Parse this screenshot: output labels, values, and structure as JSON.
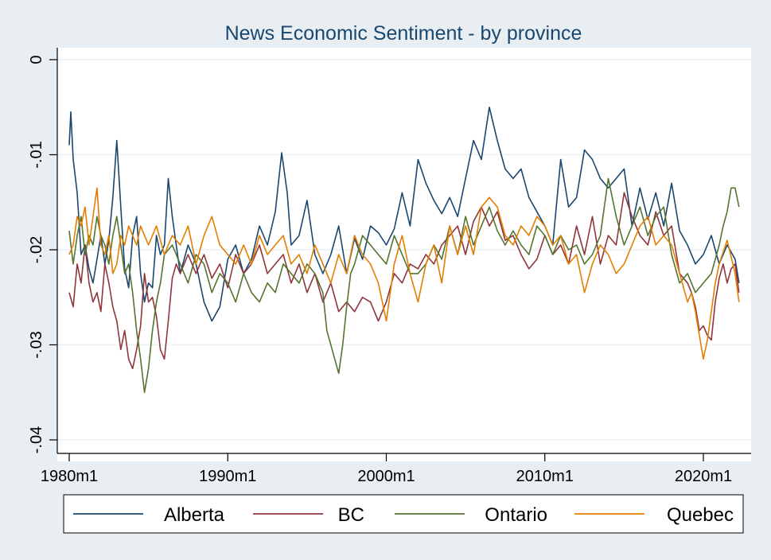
{
  "chart_data": {
    "type": "line",
    "title": "News Economic Sentiment - by province",
    "xlabel": "",
    "ylabel": "",
    "x_ticks": [
      "1980m1",
      "1990m1",
      "2000m1",
      "2010m1",
      "2020m1"
    ],
    "x_tick_years": [
      1980,
      1990,
      2000,
      2010,
      2020
    ],
    "y_ticks": [
      "0",
      "-.01",
      "-.02",
      "-.03",
      "-.04"
    ],
    "y_tick_values": [
      0,
      -0.01,
      -0.02,
      -0.03,
      -0.04
    ],
    "xlim": [
      1980.0,
      2022.25
    ],
    "ylim": [
      -0.041,
      0.0
    ],
    "grid": true,
    "legend_position": "bottom",
    "series": [
      {
        "name": "Alberta",
        "color": "#1a476f",
        "x": [
          1980.0,
          1980.1,
          1980.25,
          1980.5,
          1980.75,
          1981.0,
          1981.25,
          1981.5,
          1981.75,
          1982.0,
          1982.25,
          1982.5,
          1982.75,
          1983.0,
          1983.25,
          1983.5,
          1983.75,
          1984.0,
          1984.25,
          1984.5,
          1984.75,
          1985.0,
          1985.25,
          1985.5,
          1985.75,
          1986.0,
          1986.25,
          1986.5,
          1986.75,
          1987.0,
          1987.5,
          1988.0,
          1988.5,
          1989.0,
          1989.5,
          1990.0,
          1990.5,
          1991.0,
          1991.5,
          1992.0,
          1992.5,
          1993.0,
          1993.4,
          1993.75,
          1994.0,
          1994.5,
          1995.0,
          1995.5,
          1996.0,
          1996.5,
          1997.0,
          1997.5,
          1998.0,
          1998.5,
          1999.0,
          1999.5,
          2000.0,
          2000.5,
          2001.0,
          2001.5,
          2002.0,
          2002.5,
          2003.0,
          2003.5,
          2004.0,
          2004.5,
          2005.0,
          2005.5,
          2006.0,
          2006.5,
          2007.0,
          2007.5,
          2008.0,
          2008.5,
          2009.0,
          2009.5,
          2010.0,
          2010.5,
          2011.0,
          2011.5,
          2012.0,
          2012.5,
          2013.0,
          2013.5,
          2014.0,
          2014.5,
          2015.0,
          2015.5,
          2016.0,
          2016.5,
          2017.0,
          2017.5,
          2018.0,
          2018.5,
          2019.0,
          2019.5,
          2020.0,
          2020.5,
          2021.0,
          2021.5,
          2022.0,
          2022.25
        ],
        "values": [
          -0.009,
          -0.0055,
          -0.0105,
          -0.014,
          -0.0205,
          -0.0195,
          -0.022,
          -0.0235,
          -0.021,
          -0.0185,
          -0.0215,
          -0.019,
          -0.0145,
          -0.0085,
          -0.0155,
          -0.022,
          -0.024,
          -0.0185,
          -0.0165,
          -0.0225,
          -0.0255,
          -0.0235,
          -0.024,
          -0.0185,
          -0.0205,
          -0.0195,
          -0.0125,
          -0.0165,
          -0.0195,
          -0.0225,
          -0.0195,
          -0.0215,
          -0.0255,
          -0.0275,
          -0.026,
          -0.021,
          -0.0195,
          -0.0225,
          -0.021,
          -0.0175,
          -0.0195,
          -0.016,
          -0.0098,
          -0.014,
          -0.0195,
          -0.0185,
          -0.0148,
          -0.0205,
          -0.0225,
          -0.0205,
          -0.0175,
          -0.0225,
          -0.0188,
          -0.021,
          -0.0175,
          -0.0182,
          -0.0195,
          -0.0178,
          -0.014,
          -0.0175,
          -0.0105,
          -0.013,
          -0.0148,
          -0.0162,
          -0.0145,
          -0.0165,
          -0.0125,
          -0.0085,
          -0.0105,
          -0.005,
          -0.0085,
          -0.0115,
          -0.0125,
          -0.0115,
          -0.0145,
          -0.016,
          -0.0175,
          -0.0195,
          -0.0105,
          -0.0155,
          -0.0145,
          -0.0095,
          -0.0105,
          -0.0125,
          -0.0135,
          -0.0125,
          -0.0115,
          -0.0175,
          -0.0135,
          -0.0168,
          -0.014,
          -0.0175,
          -0.013,
          -0.018,
          -0.0195,
          -0.0215,
          -0.0205,
          -0.0185,
          -0.0215,
          -0.0195,
          -0.021,
          -0.0235
        ]
      },
      {
        "name": "BC",
        "color": "#90353b",
        "x": [
          1980.0,
          1980.25,
          1980.5,
          1980.75,
          1981.0,
          1981.25,
          1981.5,
          1981.75,
          1982.0,
          1982.25,
          1982.5,
          1982.75,
          1983.0,
          1983.25,
          1983.5,
          1983.75,
          1984.0,
          1984.25,
          1984.5,
          1984.75,
          1985.0,
          1985.25,
          1985.5,
          1985.75,
          1986.0,
          1986.25,
          1986.5,
          1986.75,
          1987.0,
          1987.5,
          1988.0,
          1988.5,
          1989.0,
          1989.5,
          1990.0,
          1990.5,
          1991.0,
          1991.5,
          1992.0,
          1992.5,
          1993.0,
          1993.5,
          1994.0,
          1994.5,
          1995.0,
          1995.5,
          1996.0,
          1996.5,
          1997.0,
          1997.5,
          1998.0,
          1998.5,
          1999.0,
          1999.5,
          2000.0,
          2000.5,
          2001.0,
          2001.5,
          2002.0,
          2002.5,
          2003.0,
          2003.5,
          2004.0,
          2004.5,
          2005.0,
          2005.5,
          2006.0,
          2006.5,
          2007.0,
          2007.5,
          2008.0,
          2008.5,
          2009.0,
          2009.5,
          2010.0,
          2010.5,
          2011.0,
          2011.5,
          2012.0,
          2012.5,
          2013.0,
          2013.5,
          2014.0,
          2014.5,
          2015.0,
          2015.5,
          2016.0,
          2016.5,
          2017.0,
          2017.5,
          2018.0,
          2018.5,
          2019.0,
          2019.25,
          2019.5,
          2019.75,
          2020.0,
          2020.25,
          2020.5,
          2020.75,
          2021.0,
          2021.25,
          2021.5,
          2021.75,
          2022.0,
          2022.25
        ],
        "values": [
          -0.0245,
          -0.026,
          -0.0215,
          -0.0235,
          -0.0195,
          -0.0235,
          -0.0255,
          -0.0245,
          -0.0265,
          -0.0215,
          -0.0235,
          -0.026,
          -0.0275,
          -0.0305,
          -0.0285,
          -0.0315,
          -0.0325,
          -0.0305,
          -0.028,
          -0.0225,
          -0.0255,
          -0.025,
          -0.027,
          -0.0305,
          -0.0315,
          -0.0275,
          -0.023,
          -0.0215,
          -0.0225,
          -0.0205,
          -0.0225,
          -0.0205,
          -0.023,
          -0.0215,
          -0.024,
          -0.0205,
          -0.0225,
          -0.0215,
          -0.0195,
          -0.0225,
          -0.0215,
          -0.0205,
          -0.0235,
          -0.0215,
          -0.0245,
          -0.0225,
          -0.0255,
          -0.0235,
          -0.0265,
          -0.0255,
          -0.0265,
          -0.025,
          -0.0255,
          -0.0275,
          -0.0255,
          -0.0225,
          -0.0235,
          -0.0215,
          -0.022,
          -0.0205,
          -0.0215,
          -0.0195,
          -0.0185,
          -0.0175,
          -0.0205,
          -0.017,
          -0.0155,
          -0.0175,
          -0.016,
          -0.019,
          -0.0185,
          -0.0205,
          -0.022,
          -0.021,
          -0.0185,
          -0.0205,
          -0.0195,
          -0.0215,
          -0.0175,
          -0.0205,
          -0.0165,
          -0.0215,
          -0.0185,
          -0.0195,
          -0.014,
          -0.0165,
          -0.0185,
          -0.0195,
          -0.016,
          -0.0185,
          -0.0175,
          -0.0225,
          -0.0235,
          -0.0245,
          -0.026,
          -0.0285,
          -0.028,
          -0.029,
          -0.0295,
          -0.0255,
          -0.023,
          -0.0215,
          -0.0235,
          -0.022,
          -0.0215,
          -0.0245
        ]
      },
      {
        "name": "Ontario",
        "color": "#55752f",
        "x": [
          1980.0,
          1980.25,
          1980.5,
          1980.75,
          1981.0,
          1981.25,
          1981.5,
          1981.75,
          1982.0,
          1982.25,
          1982.5,
          1982.75,
          1983.0,
          1983.25,
          1983.5,
          1983.75,
          1984.0,
          1984.25,
          1984.5,
          1984.75,
          1985.0,
          1985.25,
          1985.5,
          1985.75,
          1986.0,
          1986.5,
          1987.0,
          1987.5,
          1988.0,
          1988.5,
          1989.0,
          1989.5,
          1990.0,
          1990.5,
          1991.0,
          1991.5,
          1992.0,
          1992.5,
          1993.0,
          1993.5,
          1994.0,
          1994.5,
          1995.0,
          1995.5,
          1996.0,
          1996.25,
          1996.5,
          1996.75,
          1997.0,
          1997.25,
          1997.5,
          1997.75,
          1998.0,
          1998.5,
          1999.0,
          1999.5,
          2000.0,
          2000.5,
          2001.0,
          2001.5,
          2002.0,
          2002.5,
          2003.0,
          2003.5,
          2004.0,
          2004.5,
          2005.0,
          2005.5,
          2006.0,
          2006.5,
          2007.0,
          2007.5,
          2008.0,
          2008.5,
          2009.0,
          2009.5,
          2010.0,
          2010.5,
          2011.0,
          2011.5,
          2012.0,
          2012.5,
          2013.0,
          2013.5,
          2014.0,
          2014.5,
          2015.0,
          2015.5,
          2016.0,
          2016.5,
          2017.0,
          2017.5,
          2018.0,
          2018.5,
          2019.0,
          2019.5,
          2020.0,
          2020.5,
          2021.0,
          2021.25,
          2021.5,
          2021.75,
          2022.0,
          2022.25
        ],
        "values": [
          -0.018,
          -0.0215,
          -0.0185,
          -0.0165,
          -0.0205,
          -0.0185,
          -0.0195,
          -0.0165,
          -0.0185,
          -0.0195,
          -0.0215,
          -0.0185,
          -0.0165,
          -0.0195,
          -0.0225,
          -0.0215,
          -0.0245,
          -0.0285,
          -0.0315,
          -0.035,
          -0.0325,
          -0.0285,
          -0.0255,
          -0.0235,
          -0.0205,
          -0.0195,
          -0.0215,
          -0.0235,
          -0.0205,
          -0.0215,
          -0.0245,
          -0.0225,
          -0.0235,
          -0.0255,
          -0.0225,
          -0.0245,
          -0.0255,
          -0.0235,
          -0.0245,
          -0.0215,
          -0.0225,
          -0.0235,
          -0.0215,
          -0.0225,
          -0.0245,
          -0.0285,
          -0.03,
          -0.0315,
          -0.033,
          -0.03,
          -0.026,
          -0.0225,
          -0.0215,
          -0.0185,
          -0.0195,
          -0.0205,
          -0.0215,
          -0.0185,
          -0.0205,
          -0.0225,
          -0.0225,
          -0.0215,
          -0.0195,
          -0.021,
          -0.0175,
          -0.0205,
          -0.0165,
          -0.0195,
          -0.0175,
          -0.0155,
          -0.018,
          -0.0195,
          -0.018,
          -0.0195,
          -0.0205,
          -0.0175,
          -0.0185,
          -0.0205,
          -0.0185,
          -0.02,
          -0.0195,
          -0.0215,
          -0.0205,
          -0.0185,
          -0.0125,
          -0.0165,
          -0.0195,
          -0.0175,
          -0.0155,
          -0.0185,
          -0.0165,
          -0.0155,
          -0.0205,
          -0.0235,
          -0.0225,
          -0.0245,
          -0.0235,
          -0.0225,
          -0.0195,
          -0.0175,
          -0.016,
          -0.0135,
          -0.0135,
          -0.0155
        ]
      },
      {
        "name": "Quebec",
        "color": "#e37e00",
        "x": [
          1980.0,
          1980.25,
          1980.5,
          1980.75,
          1981.0,
          1981.25,
          1981.5,
          1981.75,
          1982.0,
          1982.25,
          1982.5,
          1982.75,
          1983.0,
          1983.25,
          1983.5,
          1983.75,
          1984.0,
          1984.25,
          1984.5,
          1984.75,
          1985.0,
          1985.5,
          1986.0,
          1986.5,
          1987.0,
          1987.5,
          1988.0,
          1988.5,
          1989.0,
          1989.5,
          1990.0,
          1990.5,
          1991.0,
          1991.5,
          1992.0,
          1992.5,
          1993.0,
          1993.5,
          1994.0,
          1994.5,
          1995.0,
          1995.5,
          1996.0,
          1996.5,
          1997.0,
          1997.5,
          1998.0,
          1998.5,
          1999.0,
          1999.5,
          2000.0,
          2000.5,
          2001.0,
          2001.5,
          2002.0,
          2002.5,
          2003.0,
          2003.5,
          2004.0,
          2004.5,
          2005.0,
          2005.5,
          2006.0,
          2006.5,
          2007.0,
          2007.5,
          2008.0,
          2008.5,
          2009.0,
          2009.5,
          2010.0,
          2010.5,
          2011.0,
          2011.5,
          2012.0,
          2012.5,
          2013.0,
          2013.5,
          2014.0,
          2014.5,
          2015.0,
          2015.5,
          2016.0,
          2016.5,
          2017.0,
          2017.5,
          2018.0,
          2018.5,
          2019.0,
          2019.25,
          2019.5,
          2019.75,
          2020.0,
          2020.25,
          2020.5,
          2020.75,
          2021.0,
          2021.5,
          2022.0,
          2022.25
        ],
        "values": [
          -0.0205,
          -0.0195,
          -0.0165,
          -0.0175,
          -0.0155,
          -0.0195,
          -0.0165,
          -0.0135,
          -0.0195,
          -0.0205,
          -0.0185,
          -0.0225,
          -0.0215,
          -0.0185,
          -0.0195,
          -0.0175,
          -0.0185,
          -0.0195,
          -0.0175,
          -0.0185,
          -0.0195,
          -0.0175,
          -0.0205,
          -0.0185,
          -0.0195,
          -0.0175,
          -0.0215,
          -0.0185,
          -0.0165,
          -0.0195,
          -0.0205,
          -0.0215,
          -0.0195,
          -0.0215,
          -0.0185,
          -0.0205,
          -0.0195,
          -0.0185,
          -0.0215,
          -0.0205,
          -0.0225,
          -0.0195,
          -0.0215,
          -0.0235,
          -0.0205,
          -0.0225,
          -0.0185,
          -0.0205,
          -0.0215,
          -0.0235,
          -0.0275,
          -0.0215,
          -0.0185,
          -0.0225,
          -0.0255,
          -0.0215,
          -0.0195,
          -0.0235,
          -0.0175,
          -0.0205,
          -0.0175,
          -0.0205,
          -0.0155,
          -0.0145,
          -0.0155,
          -0.0185,
          -0.0195,
          -0.0175,
          -0.0185,
          -0.0165,
          -0.0175,
          -0.0195,
          -0.0185,
          -0.0215,
          -0.0205,
          -0.0245,
          -0.0215,
          -0.0195,
          -0.0205,
          -0.0225,
          -0.0215,
          -0.0195,
          -0.0175,
          -0.0165,
          -0.0195,
          -0.0185,
          -0.0195,
          -0.0225,
          -0.0255,
          -0.0245,
          -0.0265,
          -0.029,
          -0.0315,
          -0.0295,
          -0.0265,
          -0.0235,
          -0.0215,
          -0.019,
          -0.0225,
          -0.0255
        ]
      }
    ]
  }
}
